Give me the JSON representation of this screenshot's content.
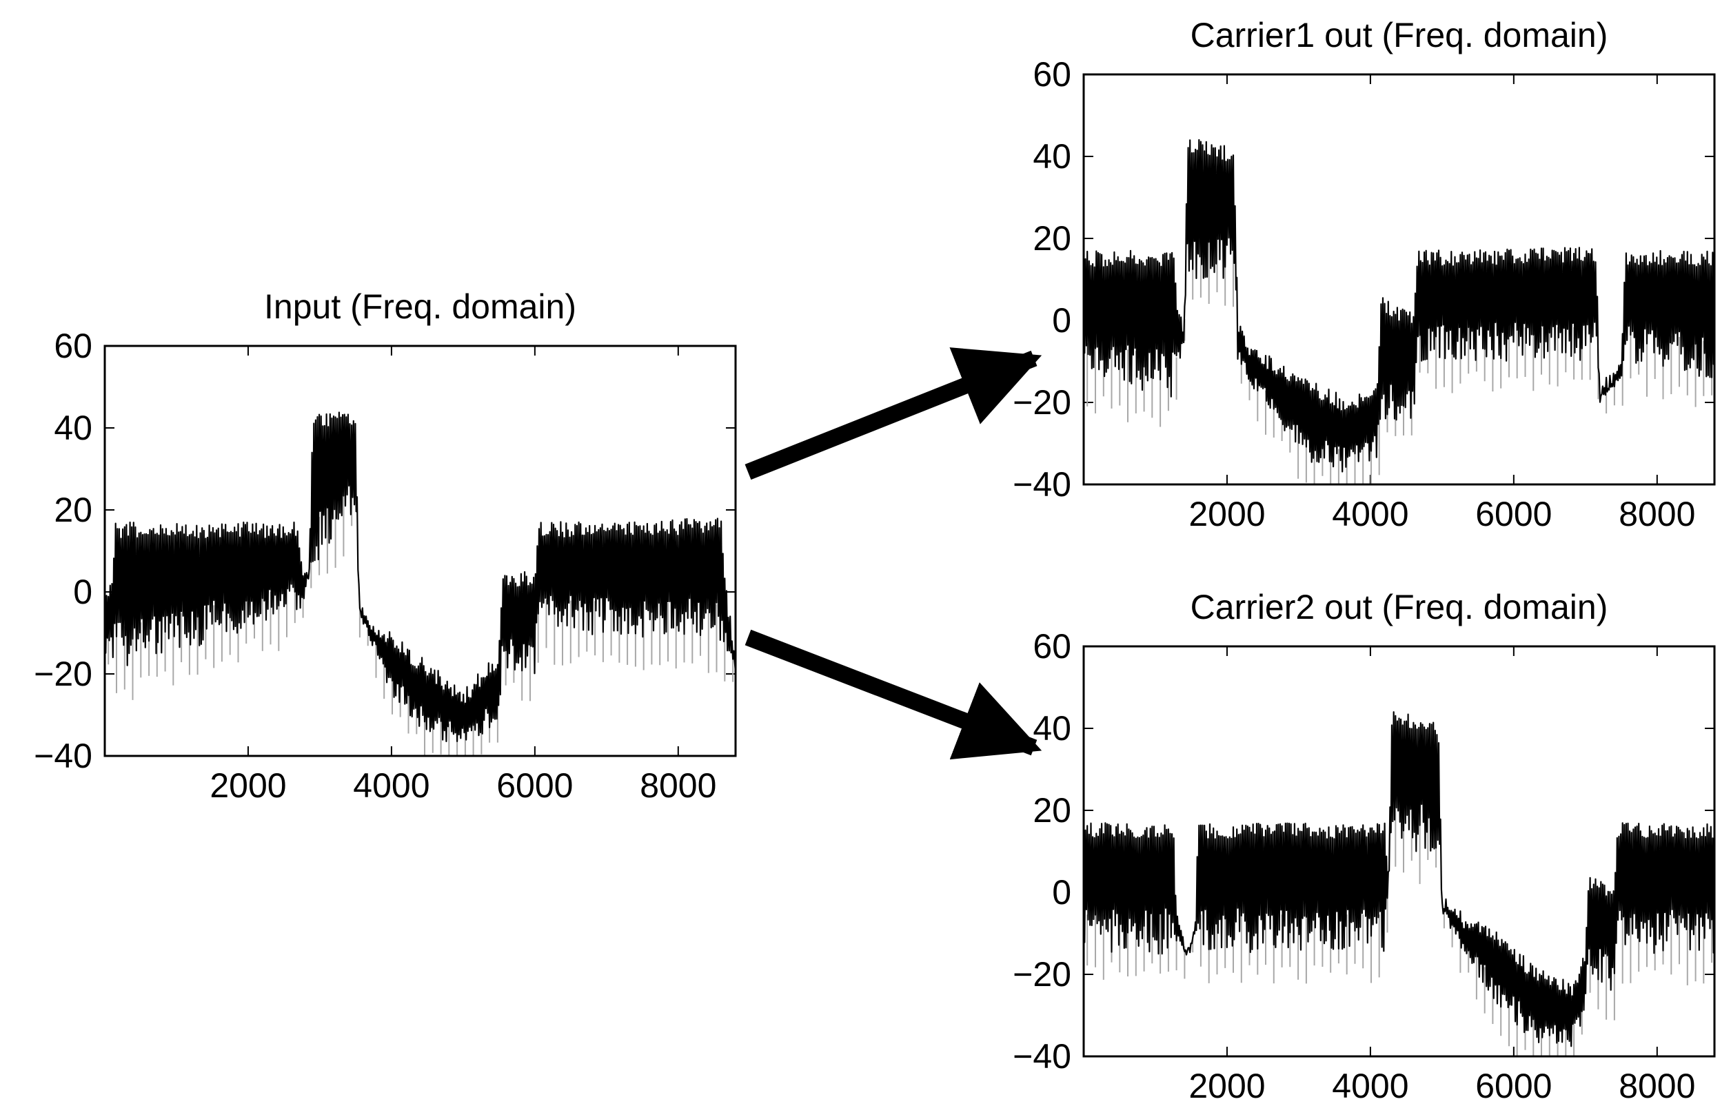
{
  "chart_data": [
    {
      "id": "input",
      "type": "line",
      "title": "Input (Freq. domain)",
      "xlabel": "",
      "ylabel": "",
      "xlim": [
        0,
        8800
      ],
      "ylim": [
        -40,
        60
      ],
      "x_ticks": [
        2000,
        4000,
        6000,
        8000
      ],
      "y_ticks": [
        60,
        40,
        20,
        0,
        -20,
        -40
      ],
      "x_tick_labels": [
        "2000",
        "4000",
        "6000",
        "8000"
      ],
      "y_tick_labels": [
        "60",
        "40",
        "20",
        "0",
        "−20",
        "−40"
      ],
      "grid": false,
      "series": [
        {
          "color": "#000000",
          "segments": [
            {
              "x": [
                0,
                100,
                150,
                2700,
                2750,
                2850,
                2900,
                3500,
                3550,
                3650,
                4000,
                4500,
                5000,
                5500,
                5550,
                5600,
                6000,
                6050,
                8600,
                8650,
                8800
              ],
              "y_upper": [
                0,
                5,
                17,
                17,
                8,
                5,
                44,
                44,
                0,
                -5,
                -10,
                -17,
                -24,
                -14,
                5,
                5,
                5,
                17,
                18,
                5,
                -17
              ],
              "y_lower": [
                -15,
                -15,
                -20,
                -5,
                -5,
                5,
                5,
                20,
                -5,
                -10,
                -25,
                -35,
                -38,
                -32,
                -20,
                -20,
                -20,
                -10,
                -12,
                -15,
                -18
              ]
            }
          ]
        }
      ]
    },
    {
      "id": "carrier1",
      "type": "line",
      "title": "Carrier1 out (Freq. domain)",
      "xlabel": "",
      "ylabel": "",
      "xlim": [
        0,
        8800
      ],
      "ylim": [
        -40,
        60
      ],
      "x_ticks": [
        2000,
        4000,
        6000,
        8000
      ],
      "y_ticks": [
        60,
        40,
        20,
        0,
        -20,
        -40
      ],
      "x_tick_labels": [
        "2000",
        "4000",
        "6000",
        "8000"
      ],
      "y_tick_labels": [
        "60",
        "40",
        "20",
        "0",
        "−20",
        "−40"
      ],
      "grid": false,
      "series": [
        {
          "color": "#000000",
          "segments": [
            {
              "x": [
                0,
                1250,
                1300,
                1400,
                1450,
                2100,
                2150,
                2300,
                2700,
                3200,
                3700,
                4100,
                4150,
                4600,
                4650,
                7150,
                7200,
                7500,
                7550,
                8800
              ],
              "y_upper": [
                17,
                17,
                5,
                0,
                45,
                42,
                0,
                -5,
                -10,
                -15,
                -19,
                -14,
                6,
                2,
                17,
                18,
                -15,
                -10,
                17,
                17
              ],
              "y_lower": [
                -15,
                -20,
                -15,
                -5,
                10,
                10,
                -10,
                -15,
                -25,
                -35,
                -38,
                -35,
                -25,
                -25,
                -10,
                -10,
                -20,
                -15,
                -10,
                -15
              ]
            }
          ]
        }
      ]
    },
    {
      "id": "carrier2",
      "type": "line",
      "title": "Carrier2 out (Freq. domain)",
      "xlabel": "",
      "ylabel": "",
      "xlim": [
        0,
        8800
      ],
      "ylim": [
        -40,
        60
      ],
      "x_ticks": [
        2000,
        4000,
        6000,
        8000
      ],
      "y_ticks": [
        60,
        40,
        20,
        0,
        -20,
        -40
      ],
      "x_tick_labels": [
        "2000",
        "4000",
        "6000",
        "8000"
      ],
      "y_tick_labels": [
        "60",
        "40",
        "20",
        "0",
        "−20",
        "−40"
      ],
      "grid": false,
      "series": [
        {
          "color": "#000000",
          "segments": [
            {
              "x": [
                0,
                1250,
                1300,
                1450,
                1550,
                1600,
                4200,
                4250,
                4300,
                4950,
                5000,
                5300,
                5800,
                6300,
                6800,
                7000,
                7050,
                7400,
                7450,
                8800
              ],
              "y_upper": [
                17,
                17,
                -5,
                -13,
                -8,
                17,
                17,
                5,
                45,
                42,
                0,
                -5,
                -10,
                -18,
                -22,
                -14,
                5,
                2,
                17,
                17
              ],
              "y_lower": [
                -15,
                -15,
                -12,
                -15,
                -10,
                -15,
                -15,
                0,
                10,
                10,
                -5,
                -15,
                -28,
                -37,
                -39,
                -30,
                -20,
                -25,
                -15,
                -15
              ]
            }
          ]
        }
      ]
    }
  ]
}
